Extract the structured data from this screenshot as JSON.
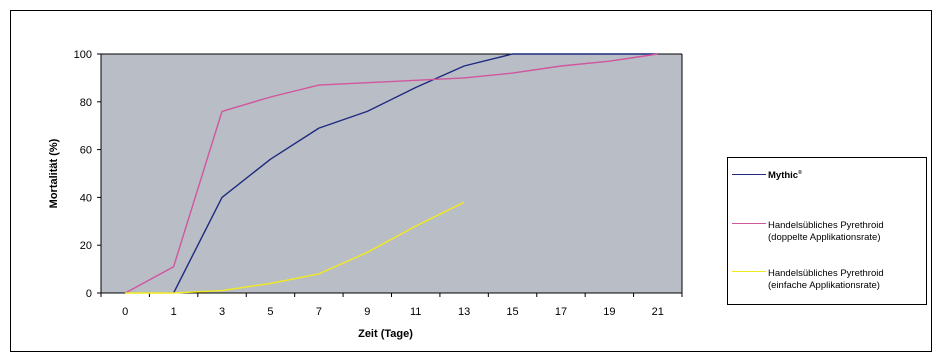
{
  "chart_data": {
    "type": "line",
    "x": [
      0,
      1,
      3,
      5,
      7,
      9,
      11,
      13,
      15,
      17,
      19,
      21
    ],
    "xlabel": "Zeit (Tage)",
    "ylabel": "Mortalität (%)",
    "xlim": [
      0,
      21
    ],
    "ylim": [
      0,
      100
    ],
    "yticks": [
      0,
      20,
      40,
      60,
      80,
      100
    ],
    "grid": false,
    "plot_background": "#b9bec6",
    "legend_position": "right",
    "series": [
      {
        "name": "Mythic",
        "name_mark": "®",
        "color": "#1f2a80",
        "points": [
          [
            1,
            0
          ],
          [
            3,
            40
          ],
          [
            5,
            56
          ],
          [
            7,
            69
          ],
          [
            9,
            76
          ],
          [
            11,
            86
          ],
          [
            13,
            95
          ],
          [
            15,
            100
          ],
          [
            17,
            100
          ],
          [
            19,
            100
          ],
          [
            21,
            100
          ]
        ]
      },
      {
        "name": "Handelsübliches Pyrethroid\n(doppelte Applikationsrate)",
        "color": "#d0569d",
        "points": [
          [
            0,
            0
          ],
          [
            1,
            11
          ],
          [
            3,
            76
          ],
          [
            5,
            82
          ],
          [
            7,
            87
          ],
          [
            9,
            88
          ],
          [
            11,
            89
          ],
          [
            13,
            90
          ],
          [
            15,
            92
          ],
          [
            17,
            95
          ],
          [
            19,
            97
          ],
          [
            21,
            100
          ]
        ]
      },
      {
        "name": "Handelsübliches Pyrethroid\n(einfache Applikationsrate)",
        "color": "#f2ea1e",
        "points": [
          [
            0,
            0
          ],
          [
            1,
            0
          ],
          [
            3,
            1
          ],
          [
            5,
            4
          ],
          [
            7,
            8
          ],
          [
            9,
            17
          ],
          [
            11,
            28
          ],
          [
            13,
            38
          ]
        ]
      }
    ]
  }
}
